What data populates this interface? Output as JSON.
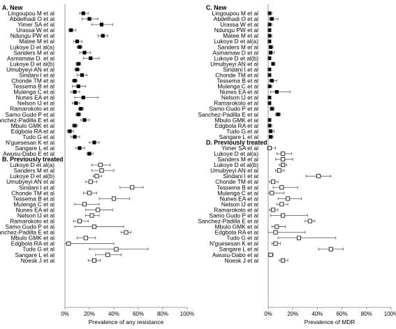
{
  "chart_data": [
    {
      "type": "forest",
      "panel": "left",
      "xlabel": "Prevalence of any resistance",
      "xlim": [
        0,
        100
      ],
      "ticks": [
        0,
        20,
        40,
        60,
        80,
        100
      ],
      "tick_labels": [
        "0%",
        "20%",
        "40%",
        "60%",
        "80%",
        "100%"
      ],
      "grid": false,
      "sections": [
        {
          "title": "A. New",
          "marker": "filled",
          "rows": [
            {
              "label": "Lingoupou M et al",
              "est": 15,
              "lo": 12,
              "hi": 19
            },
            {
              "label": "Abdelhadi O et al",
              "est": 20,
              "lo": 14,
              "hi": 27
            },
            {
              "label": "Yimer SA et al",
              "est": 30,
              "lo": 22,
              "hi": 39
            },
            {
              "label": "Urassa W et al",
              "est": 5,
              "lo": 3,
              "hi": 9
            },
            {
              "label": "Ndungu PW et al",
              "est": 31,
              "lo": 27,
              "hi": 35
            },
            {
              "label": "Matee M et al",
              "est": 10,
              "lo": 7,
              "hi": 14
            },
            {
              "label": "Lukoye D et al(a)",
              "est": 12,
              "lo": 10,
              "hi": 14
            },
            {
              "label": "Sanders M et al",
              "est": 16,
              "lo": 12,
              "hi": 21
            },
            {
              "label": "Asmamaw D. et al",
              "est": 21,
              "lo": 15,
              "hi": 28
            },
            {
              "label": "Lukoye D et al(b)",
              "est": 11,
              "lo": 9,
              "hi": 13
            },
            {
              "label": "Umubyeyi AN et al",
              "est": 10,
              "lo": 8,
              "hi": 12
            },
            {
              "label": "Sindani I et al",
              "est": 14,
              "lo": 10,
              "hi": 18
            },
            {
              "label": "Chonde TM et al",
              "est": 8,
              "lo": 6,
              "hi": 10
            },
            {
              "label": "Tessema B et al",
              "est": 11,
              "lo": 6,
              "hi": 17
            },
            {
              "label": "Mulenga C et al",
              "est": 8,
              "lo": 5,
              "hi": 12
            },
            {
              "label": "Nunes EA et al",
              "est": 15,
              "lo": 8,
              "hi": 27
            },
            {
              "label": "Nelson IJ et al",
              "est": 9,
              "lo": 6,
              "hi": 12
            },
            {
              "label": "Ramarokoto et al",
              "est": 13,
              "lo": 11,
              "hi": 15
            },
            {
              "label": "Samo Gudo P et al",
              "est": 11,
              "lo": 9,
              "hi": 13
            },
            {
              "label": "Sanchez-Padilla E et al",
              "est": 16,
              "lo": 13,
              "hi": 20
            },
            {
              "label": "Mbulo GMK et al",
              "est": 8,
              "lo": 6,
              "hi": 10
            },
            {
              "label": "Edgbola RA et al",
              "est": 4,
              "lo": 2,
              "hi": 7
            },
            {
              "label": "Tudo G et al",
              "est": 8,
              "lo": 5,
              "hi": 12
            },
            {
              "label": "N'guesesan K et al",
              "est": 24,
              "lo": 20,
              "hi": 28
            },
            {
              "label": "Sangare L et al",
              "est": 12,
              "lo": 9,
              "hi": 16
            },
            {
              "label": "Awusu-Dabo E et al",
              "est": 20,
              "lo": 18,
              "hi": 23
            }
          ]
        },
        {
          "title": "B. Previously treated",
          "marker": "open",
          "rows": [
            {
              "label": "Lukoye D et al(a)",
              "est": 29,
              "lo": 22,
              "hi": 37
            },
            {
              "label": "Sanders M et al",
              "est": 30,
              "lo": 22,
              "hi": 40
            },
            {
              "label": "Lukoye D et al(b)",
              "est": 26,
              "lo": 23,
              "hi": 30
            },
            {
              "label": "Umubyeyi AN et al",
              "est": 21,
              "lo": 17,
              "hi": 26
            },
            {
              "label": "Sindani I et al",
              "est": 55,
              "lo": 45,
              "hi": 64
            },
            {
              "label": "Chonde TM et al",
              "est": 20,
              "lo": 15,
              "hi": 26
            },
            {
              "label": "Tessema B et al",
              "est": 40,
              "lo": 28,
              "hi": 53
            },
            {
              "label": "Mulenga C et al",
              "est": 16,
              "lo": 8,
              "hi": 28
            },
            {
              "label": "Nunes EA et al",
              "est": 27,
              "lo": 17,
              "hi": 39
            },
            {
              "label": "Nelson IJ et al",
              "est": 22,
              "lo": 17,
              "hi": 28
            },
            {
              "label": "Ramarokoto et al",
              "est": 12,
              "lo": 7,
              "hi": 19
            },
            {
              "label": "Samo Gudo P et al",
              "est": 24,
              "lo": 8,
              "hi": 48
            },
            {
              "label": "Sanchez-Padilla E et al",
              "est": 50,
              "lo": 46,
              "hi": 54
            },
            {
              "label": "Mbulo GMK et al",
              "est": 17,
              "lo": 10,
              "hi": 25
            },
            {
              "label": "Edgbola RA et al",
              "est": 3,
              "lo": 0,
              "hi": 40
            },
            {
              "label": "Tudo G et al",
              "est": 42,
              "lo": 20,
              "hi": 68
            },
            {
              "label": "Sangare L et al",
              "est": 35,
              "lo": 25,
              "hi": 46
            },
            {
              "label": "Noesk J et al",
              "est": 24,
              "lo": 19,
              "hi": 29
            }
          ]
        }
      ]
    },
    {
      "type": "forest",
      "panel": "right",
      "xlabel": "Prevalence of MDR",
      "xlim": [
        0,
        100
      ],
      "ticks": [
        0,
        20,
        40,
        60,
        80,
        100
      ],
      "tick_labels": [
        "0%",
        "20%",
        "40%",
        "60%",
        "80%",
        "100%"
      ],
      "grid": false,
      "sections": [
        {
          "title": "C. New",
          "marker": "filled",
          "rows": [
            {
              "label": "Lingoupou M et al",
              "est": 1,
              "lo": 0,
              "hi": 3
            },
            {
              "label": "Abdelhadi O et al",
              "est": 3,
              "lo": 1,
              "hi": 8
            },
            {
              "label": "Urassa W et al",
              "est": 1,
              "lo": 0,
              "hi": 3
            },
            {
              "label": "Ndungu PW et al",
              "est": 1,
              "lo": 0,
              "hi": 2
            },
            {
              "label": "Matee M et al",
              "est": 1,
              "lo": 0,
              "hi": 3
            },
            {
              "label": "Lukoye D et al(a)",
              "est": 1,
              "lo": 0,
              "hi": 2
            },
            {
              "label": "Sanders M et al",
              "est": 2,
              "lo": 1,
              "hi": 4
            },
            {
              "label": "Asmamaw D et al",
              "est": 2,
              "lo": 1,
              "hi": 5
            },
            {
              "label": "Lukoye D et al(b)",
              "est": 1,
              "lo": 0,
              "hi": 2
            },
            {
              "label": "Umubyeyi AN et al",
              "est": 4,
              "lo": 3,
              "hi": 5
            },
            {
              "label": "Sindani I et al",
              "est": 1,
              "lo": 0,
              "hi": 2
            },
            {
              "label": "Chonde TM et al",
              "est": 1,
              "lo": 0,
              "hi": 2
            },
            {
              "label": "Tessema B et al",
              "est": 3,
              "lo": 1,
              "hi": 7
            },
            {
              "label": "Mulenga C et al",
              "est": 1,
              "lo": 0,
              "hi": 3
            },
            {
              "label": "Nunes EA et al",
              "est": 7,
              "lo": 2,
              "hi": 18
            },
            {
              "label": "Nelson IJ et al",
              "est": 1,
              "lo": 0,
              "hi": 2
            },
            {
              "label": "Ramarokoto et al",
              "est": 1,
              "lo": 0,
              "hi": 1
            },
            {
              "label": "Samo Gudo P et al",
              "est": 3,
              "lo": 2,
              "hi": 5
            },
            {
              "label": "Sanchez-Padilla E et al",
              "est": 8,
              "lo": 6,
              "hi": 10
            },
            {
              "label": "Mbulo GMK et al",
              "est": 1,
              "lo": 0,
              "hi": 2
            },
            {
              "label": "Edgbola RA et al",
              "est": 1,
              "lo": 0,
              "hi": 3
            },
            {
              "label": "Tudo G et al",
              "est": 2,
              "lo": 1,
              "hi": 5
            },
            {
              "label": "Sangare L et al",
              "est": 2,
              "lo": 1,
              "hi": 4
            }
          ]
        },
        {
          "title": "D. Previously treated",
          "marker": "open",
          "rows": [
            {
              "label": "Yimer SA et al",
              "est": 1,
              "lo": 0,
              "hi": 6
            },
            {
              "label": "Lukoye D et al(a)",
              "est": 12,
              "lo": 7,
              "hi": 19
            },
            {
              "label": "Sanders M et al",
              "est": 12,
              "lo": 6,
              "hi": 20
            },
            {
              "label": "Lukoye D et al(b)",
              "est": 12,
              "lo": 9,
              "hi": 15
            },
            {
              "label": "Umubyeyi AN et al",
              "est": 9,
              "lo": 6,
              "hi": 13
            },
            {
              "label": "Sindani I et al",
              "est": 41,
              "lo": 31,
              "hi": 51
            },
            {
              "label": "Chonde TM et al",
              "est": 4,
              "lo": 1,
              "hi": 8
            },
            {
              "label": "Tessema B et al",
              "est": 11,
              "lo": 4,
              "hi": 24
            },
            {
              "label": "Mulenga C et al",
              "est": 3,
              "lo": 0,
              "hi": 13
            },
            {
              "label": "Nunes EA et al",
              "est": 16,
              "lo": 8,
              "hi": 27
            },
            {
              "label": "Nelson IJ et al",
              "est": 11,
              "lo": 7,
              "hi": 16
            },
            {
              "label": "Ramarokoto et al",
              "est": 4,
              "lo": 1,
              "hi": 8
            },
            {
              "label": "Samo Gudo P et al",
              "est": 12,
              "lo": 2,
              "hi": 32
            },
            {
              "label": "Sanchez-Padilla E et al",
              "est": 34,
              "lo": 30,
              "hi": 38
            },
            {
              "label": "Mbulo GMK et al",
              "est": 7,
              "lo": 3,
              "hi": 14
            },
            {
              "label": "Edgbola RA et al",
              "est": 6,
              "lo": 0,
              "hi": 30
            },
            {
              "label": "Tudo G et al",
              "est": 25,
              "lo": 8,
              "hi": 55
            },
            {
              "label": "N'guesesan K et al",
              "est": 6,
              "lo": 3,
              "hi": 10
            },
            {
              "label": "Sangare L et al",
              "est": 51,
              "lo": 41,
              "hi": 61
            },
            {
              "label": "Awusu-Dabo et al",
              "est": 2,
              "lo": 1,
              "hi": 4
            },
            {
              "label": "Noesk J et al",
              "est": 12,
              "lo": 9,
              "hi": 16
            }
          ]
        }
      ]
    }
  ]
}
